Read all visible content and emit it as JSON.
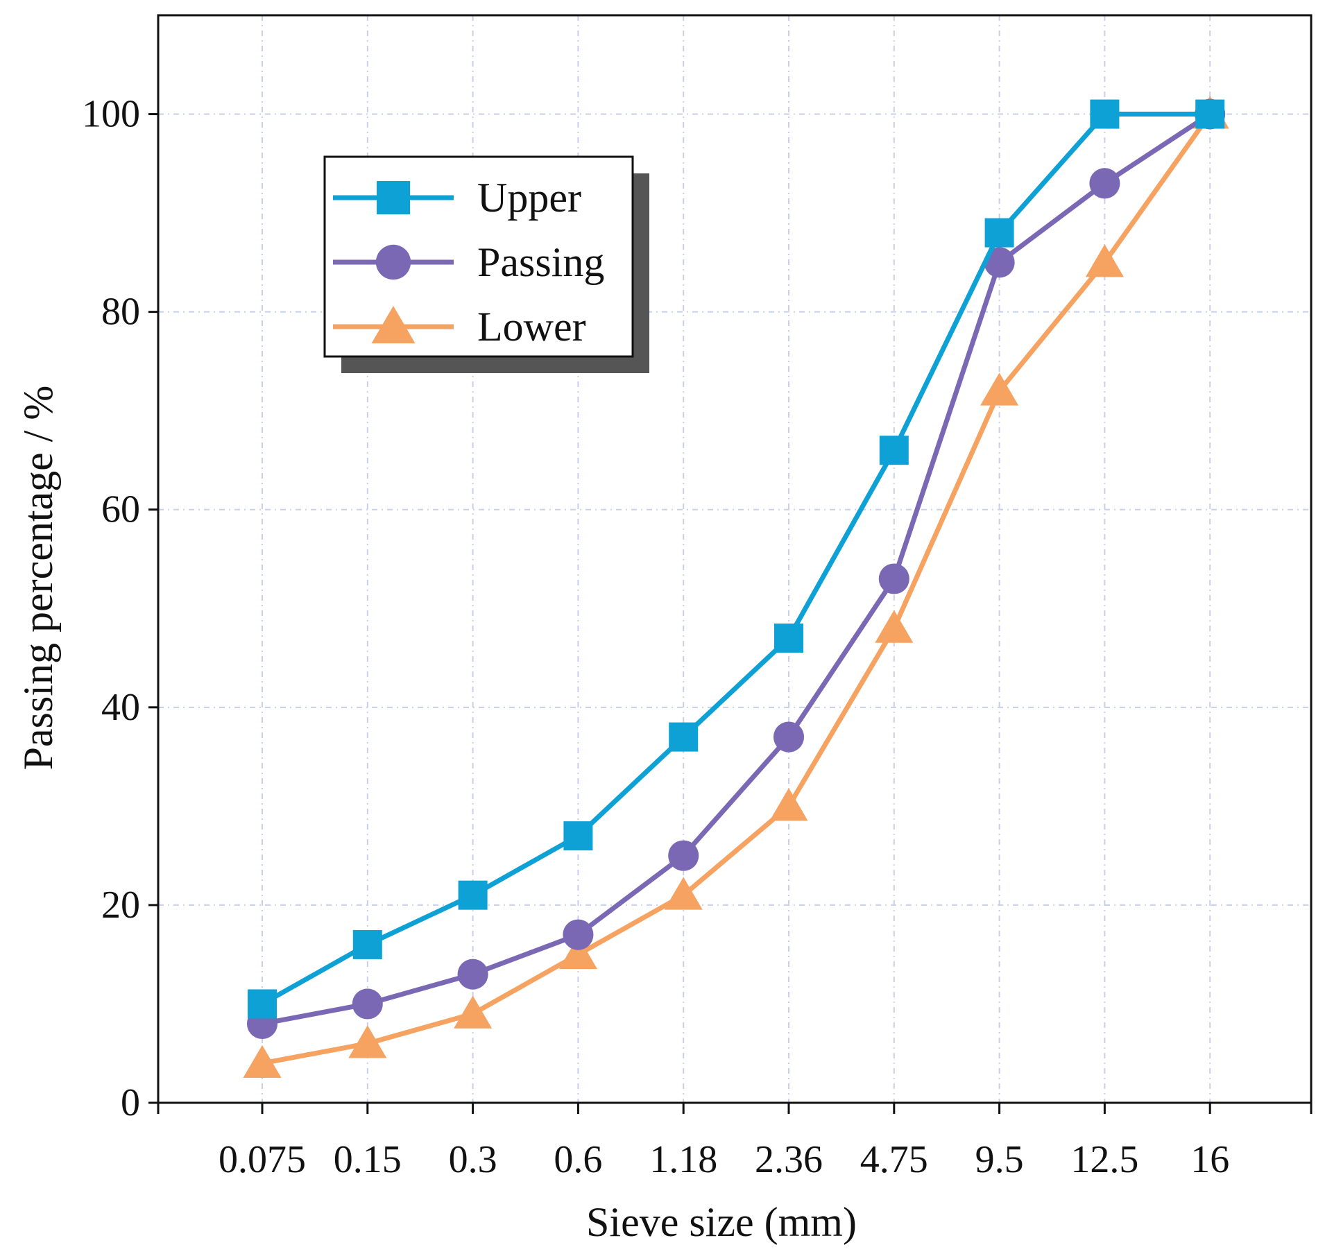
{
  "chart_data": {
    "type": "line",
    "title": "",
    "xlabel": "Sieve size (mm)",
    "ylabel": "Passing percentage / %",
    "categories": [
      "0.075",
      "0.15",
      "0.3",
      "0.6",
      "1.18",
      "2.36",
      "4.75",
      "9.5",
      "12.5",
      "16"
    ],
    "ylim": [
      0,
      110
    ],
    "yticks": [
      "0",
      "20",
      "40",
      "60",
      "80",
      "100"
    ],
    "grid": true,
    "legend_position": "top-left",
    "series": [
      {
        "name": "Upper",
        "marker": "square",
        "color": "#0ea1d6",
        "values": [
          10,
          16,
          21,
          27,
          37,
          47,
          66,
          88,
          100,
          100
        ]
      },
      {
        "name": "Passing",
        "marker": "circle",
        "color": "#7b68b5",
        "values": [
          8,
          10,
          13,
          17,
          25,
          37,
          53,
          85,
          93,
          100
        ]
      },
      {
        "name": "Lower",
        "marker": "triangle",
        "color": "#f6a261",
        "values": [
          4,
          6,
          9,
          15,
          21,
          30,
          48,
          72,
          85,
          100
        ]
      }
    ]
  }
}
